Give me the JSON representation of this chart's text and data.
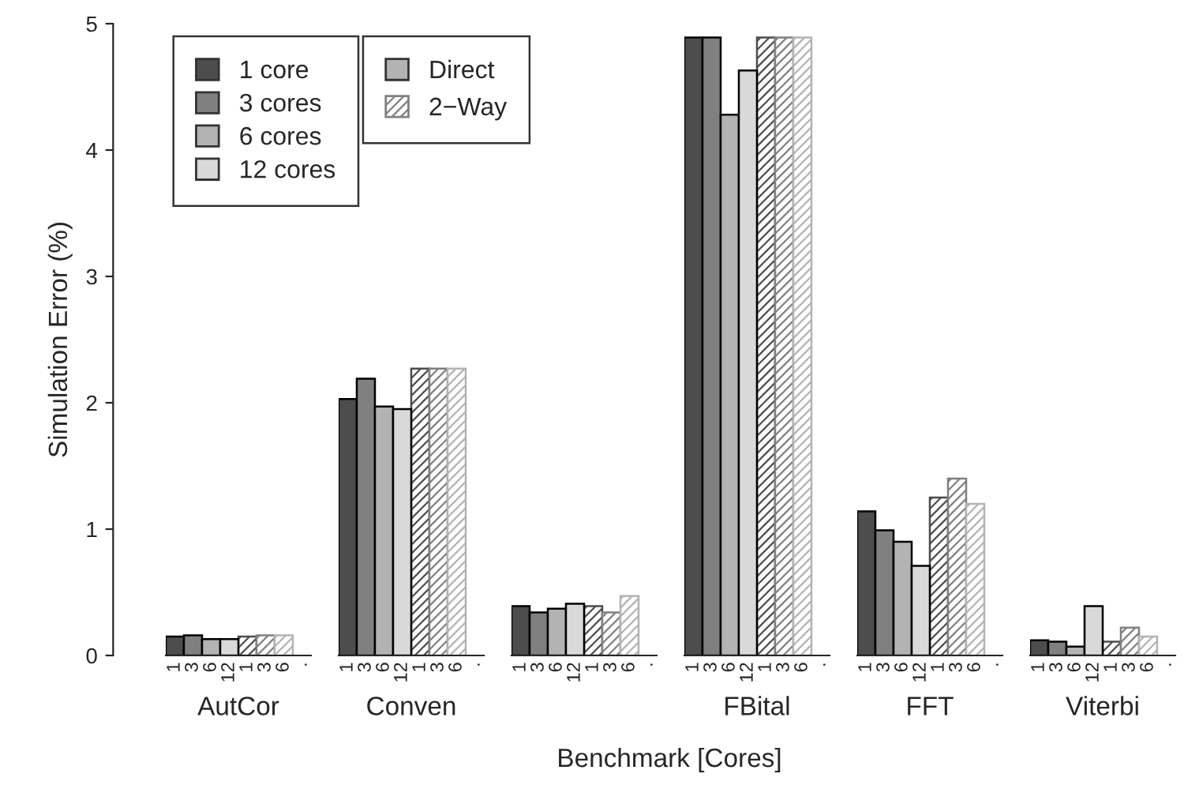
{
  "chart_data": [
    {
      "type": "bar",
      "xlabel": "AutCor",
      "ylabel": "Simulation Error (%)",
      "categories": [
        "1",
        "3",
        "6",
        "12",
        "1",
        "3",
        "6",
        "."
      ],
      "ylim": [
        0,
        5
      ],
      "yticks": [
        0,
        1,
        2,
        3,
        4,
        5
      ],
      "legend": "top right",
      "grid": false,
      "annotations": [
        "Benchmark [Cores]",
        "Direct",
        "2−Way"
      ],
      "series": [
        {
          "name": "1 core",
          "color": "#4d4d4d",
          "values": [
            0.15,
            null,
            null,
            null,
            0.15,
            null,
            null,
            null
          ]
        },
        {
          "name": "3 cores",
          "color": "#808080",
          "values": [
            null,
            0.16,
            null,
            null,
            null,
            0.16,
            null,
            null
          ]
        },
        {
          "name": "6 cores",
          "color": "#b3b3b3",
          "values": [
            null,
            null,
            0.13,
            null,
            null,
            null,
            0.16,
            null
          ]
        },
        {
          "name": "12 cores",
          "color": "#d9d9d9",
          "values": [
            null,
            null,
            null,
            0.13,
            null,
            null,
            null,
            null
          ]
        }
      ]
    },
    {
      "type": "bar",
      "xlabel": "Conven",
      "categories": [
        "1",
        "3",
        "6",
        "12",
        "1",
        "3",
        "6",
        "."
      ],
      "ylim": [
        0,
        5
      ],
      "tick_labels": "x",
      "series": [
        {
          "color": "#4d4d4d",
          "values": [
            2.03,
            null,
            null,
            null,
            2.27,
            null,
            null,
            null
          ]
        },
        {
          "color": "#808080",
          "values": [
            null,
            2.19,
            null,
            null,
            null,
            2.27,
            null,
            null
          ]
        },
        {
          "color": "#b3b3b3",
          "values": [
            null,
            null,
            1.97,
            null,
            null,
            null,
            2.27,
            null
          ]
        },
        {
          "color": "#d9d9d9",
          "values": [
            null,
            null,
            null,
            1.95,
            null,
            null,
            null,
            null
          ]
        }
      ]
    },
    {
      "type": "bar",
      "categories": [
        "1",
        "3",
        "6",
        "12",
        "1",
        "3",
        "6",
        "."
      ],
      "ylim": [
        0,
        5
      ],
      "tick_labels": "x",
      "series": [
        {
          "color": "#4d4d4d",
          "values": [
            0.39,
            null,
            null,
            null,
            0.39,
            null,
            null,
            null
          ]
        },
        {
          "color": "#808080",
          "values": [
            null,
            0.34,
            null,
            null,
            null,
            0.34,
            null,
            null
          ]
        },
        {
          "color": "#b3b3b3",
          "values": [
            null,
            null,
            0.37,
            null,
            null,
            null,
            0.47,
            null
          ]
        },
        {
          "color": "#d9d9d9",
          "values": [
            null,
            null,
            null,
            0.41,
            null,
            null,
            null,
            null
          ]
        }
      ]
    },
    {
      "type": "bar",
      "xlabel": "FBital",
      "categories": [
        "1",
        "3",
        "6",
        "12",
        "1",
        "3",
        "6",
        "."
      ],
      "ylim": [
        0,
        5
      ],
      "tick_labels": "x",
      "series": [
        {
          "color": "#4d4d4d",
          "values": [
            4.89,
            null,
            null,
            null,
            4.89,
            null,
            null,
            null
          ]
        },
        {
          "color": "#808080",
          "values": [
            null,
            4.89,
            null,
            null,
            null,
            4.89,
            null,
            null
          ]
        },
        {
          "color": "#b3b3b3",
          "values": [
            null,
            null,
            4.28,
            null,
            null,
            null,
            4.89,
            null
          ]
        },
        {
          "color": "#d9d9d9",
          "values": [
            null,
            null,
            null,
            4.63,
            null,
            null,
            null,
            null
          ]
        }
      ]
    },
    {
      "type": "bar",
      "xlabel": "FFT",
      "categories": [
        "1",
        "3",
        "6",
        "12",
        "1",
        "3",
        "6",
        "."
      ],
      "ylim": [
        0,
        5
      ],
      "tick_labels": "x",
      "series": [
        {
          "color": "#4d4d4d",
          "values": [
            1.14,
            null,
            null,
            null,
            1.25,
            null,
            null,
            null
          ]
        },
        {
          "color": "#808080",
          "values": [
            null,
            0.99,
            null,
            null,
            null,
            1.4,
            null,
            null
          ]
        },
        {
          "color": "#b3b3b3",
          "values": [
            null,
            null,
            0.9,
            null,
            null,
            null,
            1.2,
            null
          ]
        },
        {
          "color": "#d9d9d9",
          "values": [
            null,
            null,
            null,
            0.71,
            null,
            null,
            null,
            null
          ]
        }
      ]
    },
    {
      "type": "bar",
      "xlabel": "Viterbi",
      "categories": [
        "1",
        "3",
        "6",
        "12",
        "1",
        "3",
        "6",
        "."
      ],
      "ylim": [
        0,
        5
      ],
      "tick_labels": "x",
      "series": [
        {
          "color": "#4d4d4d",
          "values": [
            0.12,
            null,
            null,
            null,
            0.11,
            null,
            null,
            null
          ]
        },
        {
          "color": "#808080",
          "values": [
            null,
            0.11,
            null,
            null,
            null,
            0.22,
            null,
            null
          ]
        },
        {
          "color": "#b3b3b3",
          "values": [
            null,
            null,
            0.07,
            null,
            null,
            null,
            0.15,
            null
          ]
        },
        {
          "color": "#d9d9d9",
          "values": [
            null,
            null,
            null,
            0.39,
            null,
            null,
            null,
            null
          ]
        }
      ]
    }
  ]
}
